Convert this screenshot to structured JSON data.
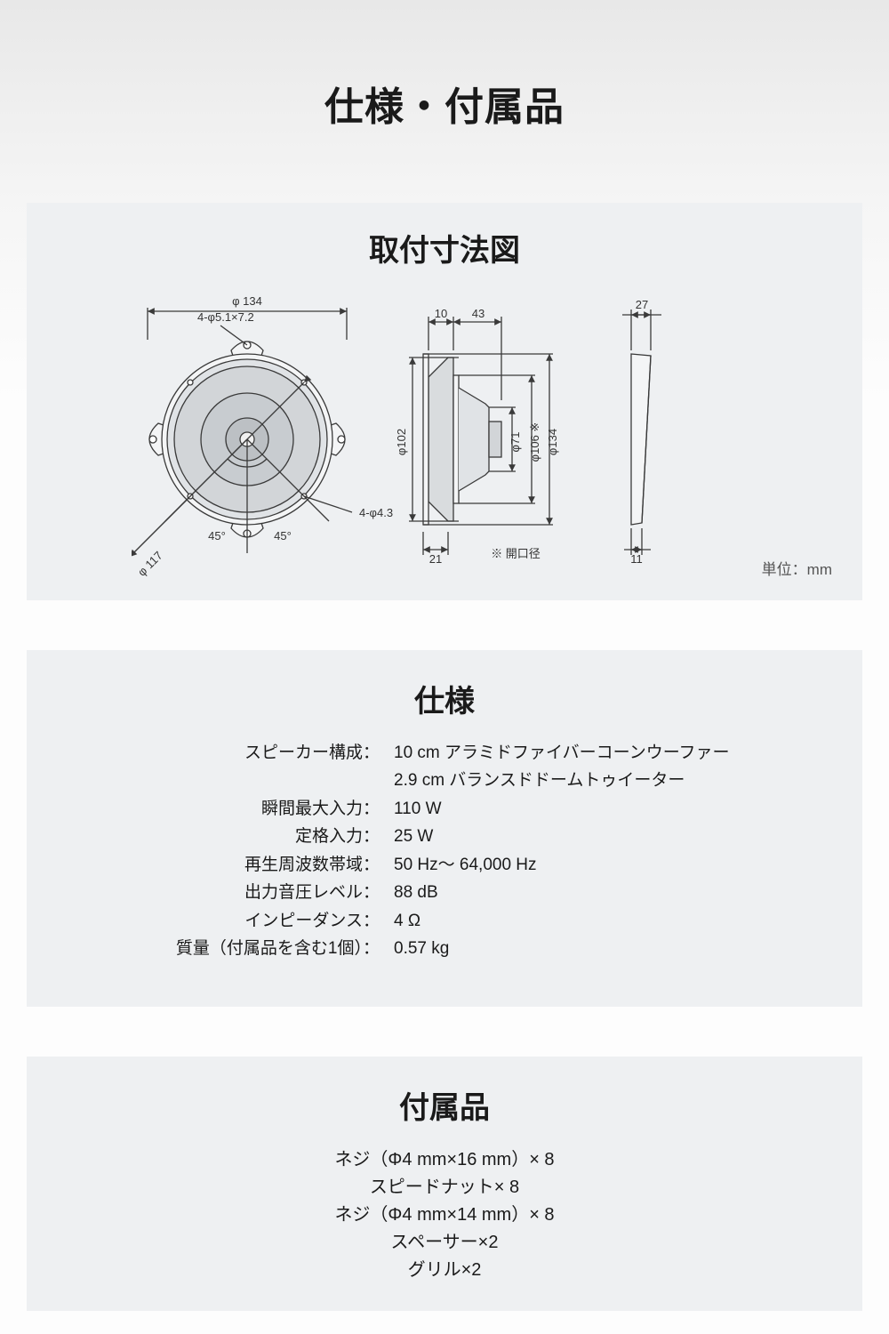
{
  "page": {
    "main_title": "仕様・付属品",
    "bg_gradient": [
      "#e8e8e8",
      "#f5f5f5",
      "#fdfdfd"
    ]
  },
  "mounting": {
    "title": "取付寸法図",
    "unit_note": "単位：mm",
    "labels": {
      "phi134": "φ 134",
      "holes_top": "4-φ5.1×7.2",
      "holes_btm": "4-φ4.3",
      "phi117": "φ 117",
      "a45l": "45°",
      "a45r": "45°",
      "d10": "10",
      "d43": "43",
      "d21": "21",
      "phi102": "φ102",
      "phi71": "φ71",
      "phi106": "φ106 ※",
      "phi134v": "φ134",
      "d27": "27",
      "d11": "11",
      "aperture": "※ 開口径"
    },
    "style": {
      "line": "#3a3a3a",
      "line_w": 1.3,
      "fill_light": "#f4f5f6",
      "fill_mid": "#d2d5d8",
      "fill_dark": "#bcc0c4",
      "label_font": 13,
      "label_color": "#333333",
      "panel_bg": "#eef0f2"
    }
  },
  "spec": {
    "title": "仕様",
    "rows": [
      {
        "label": "スピーカー構成：",
        "value": "10 cm アラミドファイバーコーンウーファー"
      },
      {
        "label": "",
        "value": "2.9 cm バランスドドームトゥイーター"
      },
      {
        "label": "瞬間最大入力：",
        "value": "110 W"
      },
      {
        "label": "定格入力：",
        "value": "25 W"
      },
      {
        "label": "再生周波数帯域：",
        "value": "50 Hz～ 64,000 Hz"
      },
      {
        "label": "出力音圧レベル：",
        "value": "88 dB"
      },
      {
        "label": "インピーダンス：",
        "value": "4 Ω"
      },
      {
        "label": "質量（付属品を含む1個）：",
        "value": "0.57 kg"
      }
    ]
  },
  "accessories": {
    "title": "付属品",
    "items": [
      "ネジ（Φ4 mm×16 mm）× 8",
      "スピードナット× 8",
      "ネジ（Φ4 mm×14 mm）× 8",
      "スペーサー×2",
      "グリル×2"
    ]
  }
}
